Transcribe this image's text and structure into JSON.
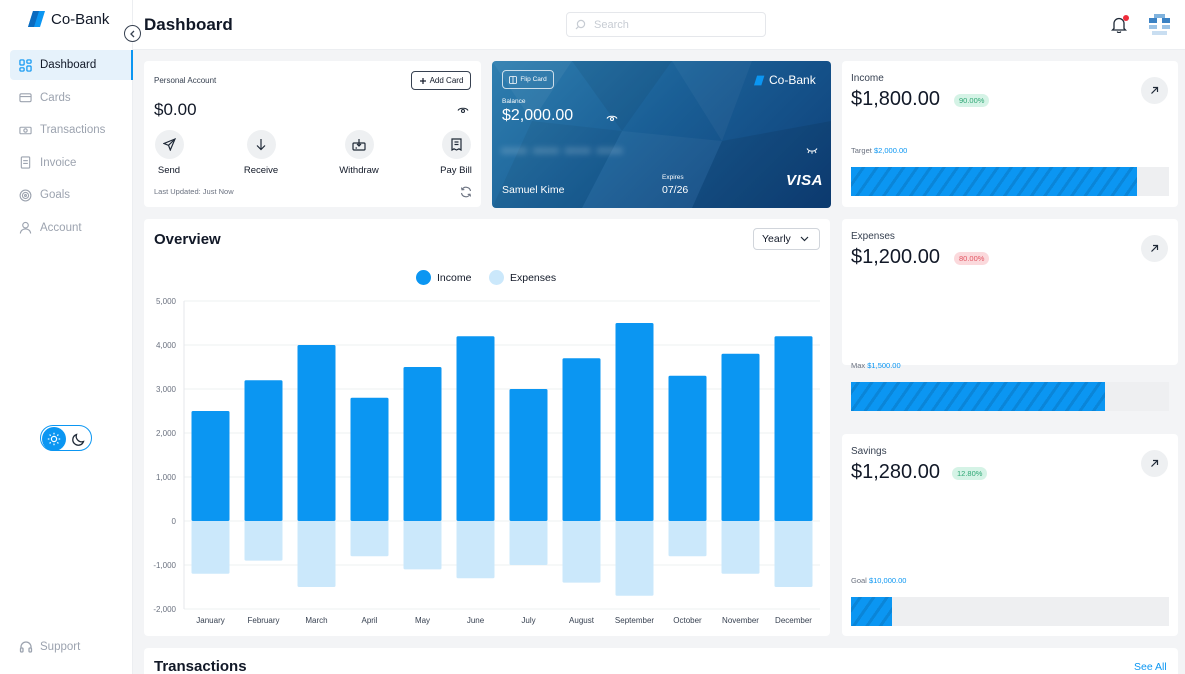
{
  "app": {
    "logo_text": "Co-Bank",
    "brand_color": "#0b96f2"
  },
  "sidebar": {
    "items": [
      {
        "label": "Dashboard",
        "icon": "grid-icon",
        "active": true
      },
      {
        "label": "Cards",
        "icon": "card-icon"
      },
      {
        "label": "Transactions",
        "icon": "cash-icon"
      },
      {
        "label": "Invoice",
        "icon": "document-icon"
      },
      {
        "label": "Goals",
        "icon": "target-icon"
      },
      {
        "label": "Account",
        "icon": "user-icon"
      }
    ],
    "support_label": "Support",
    "theme": "light"
  },
  "header": {
    "title": "Dashboard",
    "search_placeholder": "Search",
    "notifications_unread": true
  },
  "personal_account": {
    "title": "Personal Account",
    "add_card_label": "Add Card",
    "balance": "$0.00",
    "actions": [
      {
        "label": "Send",
        "icon": "send-icon"
      },
      {
        "label": "Receive",
        "icon": "arrow-down-icon"
      },
      {
        "label": "Withdraw",
        "icon": "withdraw-icon"
      },
      {
        "label": "Pay Bill",
        "icon": "bill-icon"
      }
    ],
    "last_updated": "Last Updated: Just Now"
  },
  "bank_card": {
    "flip_label": "Flip Card",
    "logo_text": "Co-Bank",
    "balance_label": "Balance",
    "balance": "$2,000.00",
    "masked_number": "•••• •••• •••• ••••",
    "holder": "Samuel Kime",
    "expires_label": "Expires",
    "expires": "07/26",
    "network": "VISA"
  },
  "overview": {
    "title": "Overview",
    "period": "Yearly",
    "legend": [
      {
        "name": "Income",
        "color": "#0b96f2"
      },
      {
        "name": "Expenses",
        "color": "#cbe8fb"
      }
    ]
  },
  "chart_data": {
    "type": "bar",
    "categories": [
      "January",
      "February",
      "March",
      "April",
      "May",
      "June",
      "July",
      "August",
      "September",
      "October",
      "November",
      "December"
    ],
    "series": [
      {
        "name": "Income",
        "values": [
          2500,
          3200,
          4000,
          2800,
          3500,
          4200,
          3000,
          3700,
          4500,
          3300,
          3800,
          4200
        ]
      },
      {
        "name": "Expenses",
        "values": [
          -1200,
          -900,
          -1500,
          -800,
          -1100,
          -1300,
          -1000,
          -1400,
          -1700,
          -800,
          -1200,
          -1500
        ]
      }
    ],
    "ylim": [
      -2000,
      5000
    ],
    "yticks": [
      "5,000",
      "4,000",
      "3,000",
      "2,000",
      "1,000",
      "0",
      "-1,000",
      "-2,000"
    ],
    "grid": true,
    "legend_position": "top-center"
  },
  "stats": [
    {
      "label": "Income",
      "value": "$1,800.00",
      "badge": "90.00%",
      "badge_tone": "green",
      "target_label": "Target",
      "target_value": "$2,000.00",
      "progress": 0.9
    },
    {
      "label": "Expenses",
      "value": "$1,200.00",
      "badge": "80.00%",
      "badge_tone": "red",
      "target_label": "Max",
      "target_value": "$1,500.00",
      "progress": 0.8
    },
    {
      "label": "Savings",
      "value": "$1,280.00",
      "badge": "12.80%",
      "badge_tone": "green",
      "target_label": "Goal",
      "target_value": "$10,000.00",
      "progress": 0.128
    }
  ],
  "transactions": {
    "title": "Transactions",
    "see_all_label": "See All"
  }
}
